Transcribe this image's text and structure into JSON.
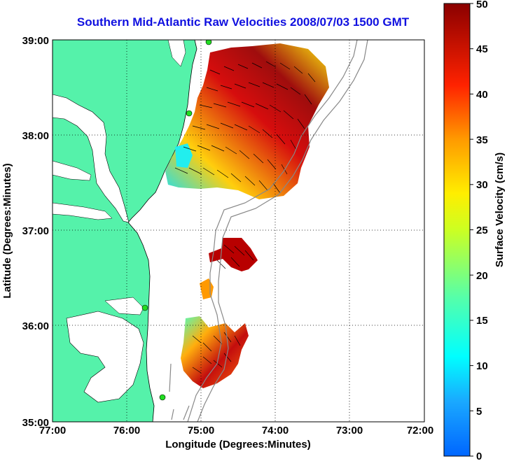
{
  "title": "Southern Mid-Atlantic Raw Velocities 2008/07/03 1500 GMT",
  "x_axis": {
    "label": "Longitude (Degrees:Minutes)",
    "ticks": [
      "77:00",
      "76:00",
      "75:00",
      "74:00",
      "73:00",
      "72:00"
    ]
  },
  "y_axis": {
    "label": "Latitude (Degrees:Minutes)",
    "ticks": [
      "39:00",
      "38:00",
      "37:00",
      "36:00",
      "35:00"
    ]
  },
  "colorbar": {
    "label": "Surface Velocity (cm/s)",
    "range": [
      0,
      50
    ],
    "ticks": [
      "50",
      "45",
      "40",
      "35",
      "30",
      "25",
      "20",
      "15",
      "10",
      "5",
      "0"
    ],
    "colormap": "jet"
  },
  "colors": {
    "land": "#55f2aa",
    "water": "#ffffff",
    "title": "#1010e0",
    "bathymetry": "#888888",
    "station": "#22dd22"
  },
  "map_bounds": {
    "lon": [
      -77,
      -72
    ],
    "lat": [
      35,
      39
    ]
  },
  "grid": true
}
